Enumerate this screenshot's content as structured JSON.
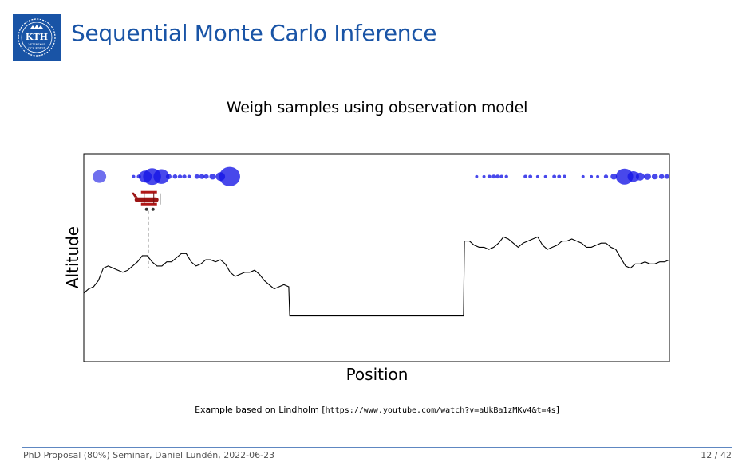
{
  "slide": {
    "title": "Sequential Monte Carlo Inference",
    "subtitle": "Weigh samples using observation model",
    "caption_prefix": "Example based on Lindholm [",
    "caption_url": "https://www.youtube.com/watch?v=aUkBa1zMKv4&t=4s",
    "caption_suffix": "]",
    "footer_left": "PhD Proposal (80%) Seminar, Daniel Lundén, 2022-06-23",
    "footer_right": "12 / 42",
    "logo_text": "KTH",
    "logo_sub1": "VETENSKAP",
    "logo_sub2": "OCH KONST",
    "brand_color": "#1954a6"
  },
  "chart_data": {
    "type": "line",
    "xlabel": "Position",
    "ylabel": "Altitude",
    "grid": false,
    "ticks": false,
    "terrain": [
      [
        0,
        0.33
      ],
      [
        1,
        0.35
      ],
      [
        2,
        0.36
      ],
      [
        3,
        0.39
      ],
      [
        4,
        0.45
      ],
      [
        5,
        0.46
      ],
      [
        6,
        0.45
      ],
      [
        7,
        0.44
      ],
      [
        8,
        0.43
      ],
      [
        9,
        0.44
      ],
      [
        10,
        0.46
      ],
      [
        11,
        0.48
      ],
      [
        12,
        0.51
      ],
      [
        13,
        0.51
      ],
      [
        14,
        0.48
      ],
      [
        15,
        0.46
      ],
      [
        16,
        0.46
      ],
      [
        17,
        0.48
      ],
      [
        18,
        0.48
      ],
      [
        19,
        0.5
      ],
      [
        20,
        0.52
      ],
      [
        21,
        0.52
      ],
      [
        22,
        0.48
      ],
      [
        23,
        0.46
      ],
      [
        24,
        0.47
      ],
      [
        25,
        0.49
      ],
      [
        26,
        0.49
      ],
      [
        27,
        0.48
      ],
      [
        28,
        0.49
      ],
      [
        29,
        0.47
      ],
      [
        30,
        0.43
      ],
      [
        31,
        0.41
      ],
      [
        32,
        0.42
      ],
      [
        33,
        0.43
      ],
      [
        34,
        0.43
      ],
      [
        35,
        0.44
      ],
      [
        36,
        0.42
      ],
      [
        37,
        0.39
      ],
      [
        38,
        0.37
      ],
      [
        39,
        0.35
      ],
      [
        40,
        0.36
      ],
      [
        41,
        0.37
      ],
      [
        42,
        0.36
      ],
      [
        42.2,
        0.22
      ],
      [
        50,
        0.22
      ],
      [
        60,
        0.22
      ],
      [
        70,
        0.22
      ],
      [
        77.8,
        0.22
      ],
      [
        78,
        0.58
      ],
      [
        79,
        0.58
      ],
      [
        80,
        0.56
      ],
      [
        81,
        0.55
      ],
      [
        82,
        0.55
      ],
      [
        83,
        0.54
      ],
      [
        84,
        0.55
      ],
      [
        85,
        0.57
      ],
      [
        86,
        0.6
      ],
      [
        87,
        0.59
      ],
      [
        88,
        0.57
      ],
      [
        89,
        0.55
      ],
      [
        90,
        0.57
      ],
      [
        91,
        0.58
      ],
      [
        92,
        0.59
      ],
      [
        93,
        0.6
      ],
      [
        94,
        0.56
      ],
      [
        95,
        0.54
      ],
      [
        96,
        0.55
      ],
      [
        97,
        0.56
      ],
      [
        98,
        0.58
      ],
      [
        99,
        0.58
      ],
      [
        100,
        0.59
      ],
      [
        101,
        0.58
      ],
      [
        102,
        0.57
      ],
      [
        103,
        0.55
      ],
      [
        104,
        0.55
      ],
      [
        105,
        0.56
      ],
      [
        106,
        0.57
      ],
      [
        107,
        0.57
      ],
      [
        108,
        0.55
      ],
      [
        109,
        0.54
      ],
      [
        110,
        0.5
      ],
      [
        111,
        0.46
      ],
      [
        112,
        0.45
      ],
      [
        113,
        0.47
      ],
      [
        114,
        0.47
      ],
      [
        115,
        0.48
      ],
      [
        116,
        0.47
      ],
      [
        117,
        0.47
      ],
      [
        118,
        0.48
      ],
      [
        119,
        0.48
      ],
      [
        120,
        0.49
      ]
    ],
    "x_range": [
      0,
      120
    ],
    "y_range": [
      0,
      1
    ],
    "observation_level": 0.45,
    "plane": {
      "x": 13.2,
      "y": 0.775
    },
    "particle_row_y": 0.89,
    "particles": [
      {
        "x": 3.2,
        "w": 1.6,
        "color": "#7070ee"
      },
      {
        "x": 10.2,
        "w": 0.2
      },
      {
        "x": 11.3,
        "w": 0.3
      },
      {
        "x": 12.6,
        "w": 1.5
      },
      {
        "x": 14.0,
        "w": 2.2
      },
      {
        "x": 15.9,
        "w": 1.9
      },
      {
        "x": 17.4,
        "w": 0.5
      },
      {
        "x": 18.7,
        "w": 0.35
      },
      {
        "x": 19.7,
        "w": 0.3
      },
      {
        "x": 20.6,
        "w": 0.3
      },
      {
        "x": 21.6,
        "w": 0.25
      },
      {
        "x": 23.2,
        "w": 0.4
      },
      {
        "x": 24.2,
        "w": 0.45
      },
      {
        "x": 25.1,
        "w": 0.4
      },
      {
        "x": 26.4,
        "w": 0.6
      },
      {
        "x": 28.0,
        "w": 1.0
      },
      {
        "x": 29.9,
        "w": 2.6
      },
      {
        "x": 80.5,
        "w": 0.15
      },
      {
        "x": 82.0,
        "w": 0.15
      },
      {
        "x": 83.1,
        "w": 0.25
      },
      {
        "x": 84.0,
        "w": 0.3
      },
      {
        "x": 84.8,
        "w": 0.3
      },
      {
        "x": 85.6,
        "w": 0.25
      },
      {
        "x": 86.6,
        "w": 0.2
      },
      {
        "x": 90.5,
        "w": 0.25
      },
      {
        "x": 91.5,
        "w": 0.25
      },
      {
        "x": 93.0,
        "w": 0.15
      },
      {
        "x": 94.6,
        "w": 0.15
      },
      {
        "x": 96.4,
        "w": 0.25
      },
      {
        "x": 97.4,
        "w": 0.25
      },
      {
        "x": 98.5,
        "w": 0.25
      },
      {
        "x": 102.3,
        "w": 0.15
      },
      {
        "x": 104.0,
        "w": 0.15
      },
      {
        "x": 105.3,
        "w": 0.15
      },
      {
        "x": 107.0,
        "w": 0.3
      },
      {
        "x": 108.6,
        "w": 0.6
      },
      {
        "x": 110.8,
        "w": 2.1
      },
      {
        "x": 112.6,
        "w": 1.3
      },
      {
        "x": 114.0,
        "w": 0.9
      },
      {
        "x": 115.5,
        "w": 0.7
      },
      {
        "x": 117.0,
        "w": 0.55
      },
      {
        "x": 118.4,
        "w": 0.45
      },
      {
        "x": 119.5,
        "w": 0.4
      }
    ]
  }
}
